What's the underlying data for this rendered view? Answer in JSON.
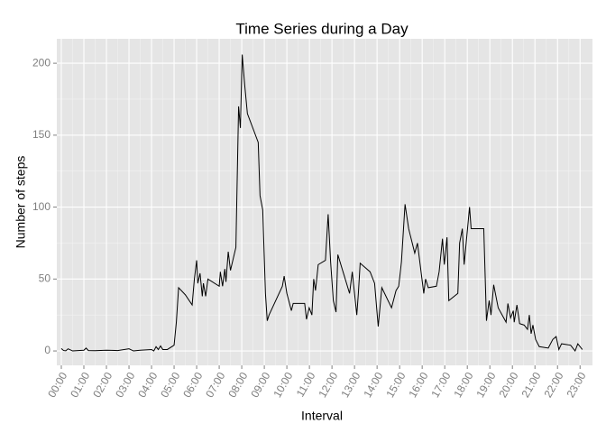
{
  "chart_data": {
    "type": "line",
    "title": "Time Series during a Day",
    "x_label": "Interval",
    "y_label": "Number of steps",
    "x": [
      0,
      0.1,
      0.2,
      0.3,
      0.5,
      1.0,
      1.1,
      1.2,
      1.5,
      2.0,
      2.5,
      3.0,
      3.2,
      3.5,
      4.0,
      4.1,
      4.2,
      4.3,
      4.4,
      4.5,
      4.7,
      5.0,
      5.1,
      5.2,
      5.5,
      5.8,
      5.9,
      6.0,
      6.05,
      6.15,
      6.25,
      6.3,
      6.4,
      6.5,
      7.0,
      7.05,
      7.15,
      7.25,
      7.3,
      7.4,
      7.5,
      7.74,
      7.86,
      7.94,
      8.02,
      8.13,
      8.25,
      8.73,
      8.81,
      8.93,
      9.05,
      9.13,
      9.21,
      9.8,
      9.88,
      10.0,
      10.2,
      10.28,
      10.79,
      10.87,
      10.99,
      11.11,
      11.19,
      11.27,
      11.39,
      11.71,
      11.83,
      11.94,
      12.06,
      12.18,
      12.26,
      12.78,
      12.9,
      13.1,
      13.17,
      13.25,
      13.69,
      13.89,
      14.05,
      14.21,
      14.64,
      14.84,
      14.96,
      15.08,
      15.24,
      15.4,
      15.67,
      15.79,
      16.07,
      16.15,
      16.27,
      16.63,
      16.75,
      16.9,
      16.98,
      17.1,
      17.18,
      17.58,
      17.66,
      17.78,
      17.86,
      17.98,
      18.1,
      18.17,
      18.73,
      18.85,
      18.97,
      19.05,
      19.17,
      19.37,
      19.72,
      19.8,
      19.92,
      20.04,
      20.08,
      20.2,
      20.32,
      20.52,
      20.67,
      20.75,
      20.83,
      20.91,
      21.03,
      21.19,
      21.59,
      21.79,
      21.94,
      22.06,
      22.18,
      22.58,
      22.78,
      22.9,
      23.1
    ],
    "series": [
      {
        "name": "steps",
        "color": "#000000",
        "values": [
          1.7,
          0.3,
          0.1,
          1.5,
          0,
          0.5,
          2,
          0.3,
          0.2,
          0.5,
          0.3,
          1.5,
          0,
          0.5,
          1,
          0,
          3,
          1,
          3.5,
          1,
          1,
          4,
          20,
          44,
          39,
          32,
          50,
          63,
          47,
          54,
          38,
          47,
          38,
          50,
          45,
          55,
          45,
          57,
          48,
          69,
          56,
          72,
          170,
          155,
          206,
          185,
          165,
          145,
          108,
          98,
          40,
          21,
          25,
          45,
          52,
          40,
          28,
          33,
          33,
          22,
          30,
          25,
          50,
          42,
          60,
          63,
          95,
          62,
          35,
          27,
          67,
          40,
          55,
          25,
          40,
          61,
          55,
          47,
          17,
          44,
          30,
          42,
          45,
          62,
          102,
          85,
          68,
          75,
          40,
          50,
          44,
          45,
          55,
          78,
          60,
          79,
          35,
          40,
          75,
          85,
          60,
          80,
          100,
          85,
          85,
          21,
          35,
          25,
          46,
          30,
          20,
          33,
          23,
          28,
          20,
          32,
          19,
          18,
          15,
          25,
          12,
          18,
          8,
          3,
          2,
          8,
          10,
          1,
          5,
          4,
          0,
          5,
          1
        ]
      }
    ],
    "xlim": [
      -0.2,
      23.55
    ],
    "ylim": [
      -10,
      217
    ],
    "xticks": [
      {
        "value": 0,
        "label": "00:00"
      },
      {
        "value": 1,
        "label": "01:00"
      },
      {
        "value": 2,
        "label": "02:00"
      },
      {
        "value": 3,
        "label": "03:00"
      },
      {
        "value": 4,
        "label": "04:00"
      },
      {
        "value": 5,
        "label": "05:00"
      },
      {
        "value": 6,
        "label": "06:00"
      },
      {
        "value": 7,
        "label": "07:00"
      },
      {
        "value": 8,
        "label": "08:00"
      },
      {
        "value": 9,
        "label": "09:00"
      },
      {
        "value": 10,
        "label": "10:00"
      },
      {
        "value": 11,
        "label": "11:00"
      },
      {
        "value": 12,
        "label": "12:00"
      },
      {
        "value": 13,
        "label": "13:00"
      },
      {
        "value": 14,
        "label": "14:00"
      },
      {
        "value": 15,
        "label": "15:00"
      },
      {
        "value": 16,
        "label": "16:00"
      },
      {
        "value": 17,
        "label": "17:00"
      },
      {
        "value": 18,
        "label": "18:00"
      },
      {
        "value": 19,
        "label": "19:00"
      },
      {
        "value": 20,
        "label": "20:00"
      },
      {
        "value": 21,
        "label": "21:00"
      },
      {
        "value": 22,
        "label": "22:00"
      },
      {
        "value": 23,
        "label": "23:00"
      }
    ],
    "yticks": [
      0,
      50,
      100,
      150,
      200
    ],
    "grid": true
  }
}
